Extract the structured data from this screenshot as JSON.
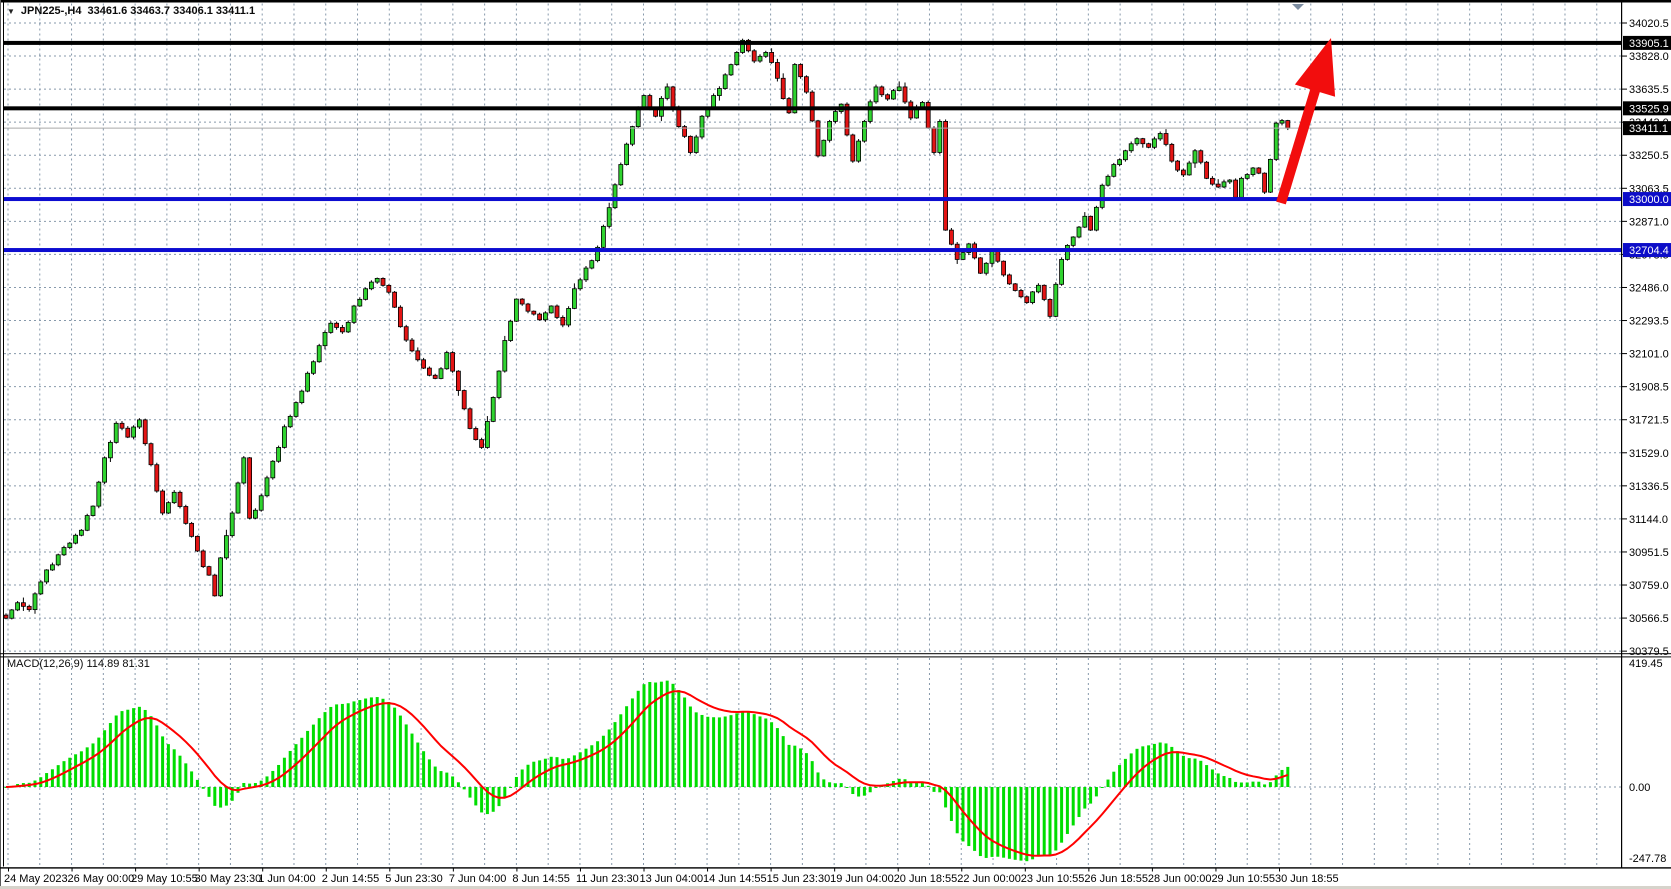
{
  "title": {
    "symbol_period": "JPN225-,H4",
    "ohlc": "33461.6 33463.7 33406.1 33411.1"
  },
  "macd": {
    "label": "MACD(12,26,9)",
    "values": "114.89 81.31",
    "axis_max": "419.45",
    "axis_zero": "0.00",
    "axis_min": "-247.78"
  },
  "price_axis": {
    "ticks": [
      "34020.5",
      "33828.0",
      "33635.5",
      "33443.0",
      "33250.5",
      "33063.5",
      "32871.0",
      "32678.5",
      "32486.0",
      "32293.5",
      "32101.0",
      "31908.5",
      "31721.5",
      "31529.0",
      "31336.5",
      "31144.0",
      "30951.5",
      "30759.0",
      "30566.5",
      "30379.5"
    ],
    "badges": [
      {
        "label": "33905.1",
        "price": 33905.1,
        "bg": "#000000",
        "fg": "#ffffff"
      },
      {
        "label": "33525.9",
        "price": 33525.9,
        "bg": "#000000",
        "fg": "#ffffff"
      },
      {
        "label": "33411.1",
        "price": 33411.1,
        "bg": "#000000",
        "fg": "#ffffff"
      },
      {
        "label": "33000.0",
        "price": 33000.0,
        "bg": "#0d0dc8",
        "fg": "#ffffff"
      },
      {
        "label": "32704.4",
        "price": 32704.4,
        "bg": "#0d0dc8",
        "fg": "#ffffff"
      }
    ]
  },
  "time_axis": {
    "labels": [
      "24 May 2023",
      "26 May 00:00",
      "29 May 10:55",
      "30 May 23:30",
      "1 Jun 04:00",
      "2 Jun 14:55",
      "5 Jun 23:30",
      "7 Jun 04:00",
      "8 Jun 14:55",
      "11 Jun 23:30",
      "13 Jun 04:00",
      "14 Jun 14:55",
      "15 Jun 23:30",
      "19 Jun 04:00",
      "20 Jun 18:55",
      "22 Jun 00:00",
      "23 Jun 10:55",
      "26 Jun 18:55",
      "28 Jun 00:00",
      "29 Jun 10:55",
      "30 Jun 18:55"
    ]
  },
  "chart_data": {
    "type": "candlestick",
    "symbol": "JPN225-",
    "timeframe": "H4",
    "title_ohlc": {
      "open": 33461.6,
      "high": 33463.7,
      "low": 33406.1,
      "close": 33411.1
    },
    "ylim": [
      30379.5,
      34020.5
    ],
    "grid": true,
    "levels": [
      {
        "name": "resistance-upper",
        "price": 33905.1,
        "color": "#000000",
        "width": 4
      },
      {
        "name": "resistance-lower",
        "price": 33525.9,
        "color": "#000000",
        "width": 4
      },
      {
        "name": "current-price-line",
        "price": 33411.1,
        "color": "#a9a9a9",
        "width": 1
      },
      {
        "name": "support-upper",
        "price": 33000.0,
        "color": "#0d0dd0",
        "width": 4
      },
      {
        "name": "support-lower",
        "price": 32704.4,
        "color": "#0d0dd0",
        "width": 4
      }
    ],
    "candle_count": 222,
    "close_anchors": [
      [
        0,
        30570
      ],
      [
        2,
        30660
      ],
      [
        4,
        30620
      ],
      [
        7,
        30850
      ],
      [
        10,
        30980
      ],
      [
        13,
        31080
      ],
      [
        15,
        31220
      ],
      [
        17,
        31500
      ],
      [
        19,
        31700
      ],
      [
        21,
        31620
      ],
      [
        23,
        31720
      ],
      [
        25,
        31460
      ],
      [
        27,
        31180
      ],
      [
        29,
        31300
      ],
      [
        31,
        31120
      ],
      [
        33,
        30960
      ],
      [
        35,
        30820
      ],
      [
        36,
        30700
      ],
      [
        37,
        30920
      ],
      [
        39,
        31180
      ],
      [
        41,
        31500
      ],
      [
        42,
        31150
      ],
      [
        44,
        31280
      ],
      [
        46,
        31480
      ],
      [
        48,
        31680
      ],
      [
        50,
        31820
      ],
      [
        52,
        31990
      ],
      [
        54,
        32150
      ],
      [
        56,
        32280
      ],
      [
        58,
        32230
      ],
      [
        60,
        32380
      ],
      [
        62,
        32480
      ],
      [
        64,
        32540
      ],
      [
        66,
        32460
      ],
      [
        68,
        32260
      ],
      [
        70,
        32120
      ],
      [
        72,
        32020
      ],
      [
        74,
        31960
      ],
      [
        76,
        32110
      ],
      [
        78,
        31890
      ],
      [
        80,
        31670
      ],
      [
        82,
        31560
      ],
      [
        84,
        31850
      ],
      [
        86,
        32180
      ],
      [
        88,
        32420
      ],
      [
        90,
        32350
      ],
      [
        92,
        32300
      ],
      [
        94,
        32380
      ],
      [
        96,
        32270
      ],
      [
        98,
        32480
      ],
      [
        100,
        32600
      ],
      [
        102,
        32720
      ],
      [
        104,
        32950
      ],
      [
        106,
        33200
      ],
      [
        108,
        33420
      ],
      [
        110,
        33600
      ],
      [
        112,
        33480
      ],
      [
        114,
        33650
      ],
      [
        116,
        33420
      ],
      [
        118,
        33270
      ],
      [
        120,
        33480
      ],
      [
        122,
        33600
      ],
      [
        124,
        33720
      ],
      [
        126,
        33850
      ],
      [
        127,
        33920
      ],
      [
        129,
        33800
      ],
      [
        131,
        33850
      ],
      [
        133,
        33700
      ],
      [
        135,
        33500
      ],
      [
        136,
        33780
      ],
      [
        138,
        33620
      ],
      [
        140,
        33250
      ],
      [
        142,
        33450
      ],
      [
        144,
        33550
      ],
      [
        146,
        33220
      ],
      [
        148,
        33450
      ],
      [
        150,
        33650
      ],
      [
        152,
        33580
      ],
      [
        154,
        33650
      ],
      [
        156,
        33470
      ],
      [
        158,
        33560
      ],
      [
        160,
        33270
      ],
      [
        161,
        33450
      ],
      [
        162,
        32820
      ],
      [
        164,
        32650
      ],
      [
        166,
        32740
      ],
      [
        168,
        32570
      ],
      [
        170,
        32700
      ],
      [
        172,
        32560
      ],
      [
        174,
        32470
      ],
      [
        176,
        32400
      ],
      [
        178,
        32500
      ],
      [
        180,
        32320
      ],
      [
        182,
        32650
      ],
      [
        184,
        32780
      ],
      [
        186,
        32900
      ],
      [
        187,
        32820
      ],
      [
        189,
        33080
      ],
      [
        191,
        33200
      ],
      [
        193,
        33280
      ],
      [
        195,
        33350
      ],
      [
        197,
        33300
      ],
      [
        199,
        33380
      ],
      [
        201,
        33220
      ],
      [
        203,
        33140
      ],
      [
        205,
        33280
      ],
      [
        207,
        33120
      ],
      [
        209,
        33070
      ],
      [
        211,
        33110
      ],
      [
        212,
        33010
      ],
      [
        213,
        33120
      ],
      [
        215,
        33180
      ],
      [
        216,
        33150
      ],
      [
        217,
        33040
      ],
      [
        218,
        33230
      ],
      [
        219,
        33440
      ],
      [
        220,
        33455
      ],
      [
        221,
        33411
      ]
    ],
    "macd_panel": {
      "params": [
        12,
        26,
        9
      ],
      "macd_current": 114.89,
      "signal_current": 81.31,
      "ylim": [
        -247.78,
        419.45
      ],
      "zero_line": 0
    },
    "annotation_arrow": {
      "from_price": 33000,
      "to_price": 33905,
      "color": "#f20d0d"
    },
    "colors": {
      "bull": "#2fd32f",
      "bear": "#e31414",
      "wick": "#000000",
      "grid": "#8799ab",
      "hist": "#00dd00",
      "signal": "#ff0000",
      "badge_black": "#000000",
      "badge_blue": "#0d0dc8",
      "shift_marker": "#7c8ca0"
    }
  }
}
